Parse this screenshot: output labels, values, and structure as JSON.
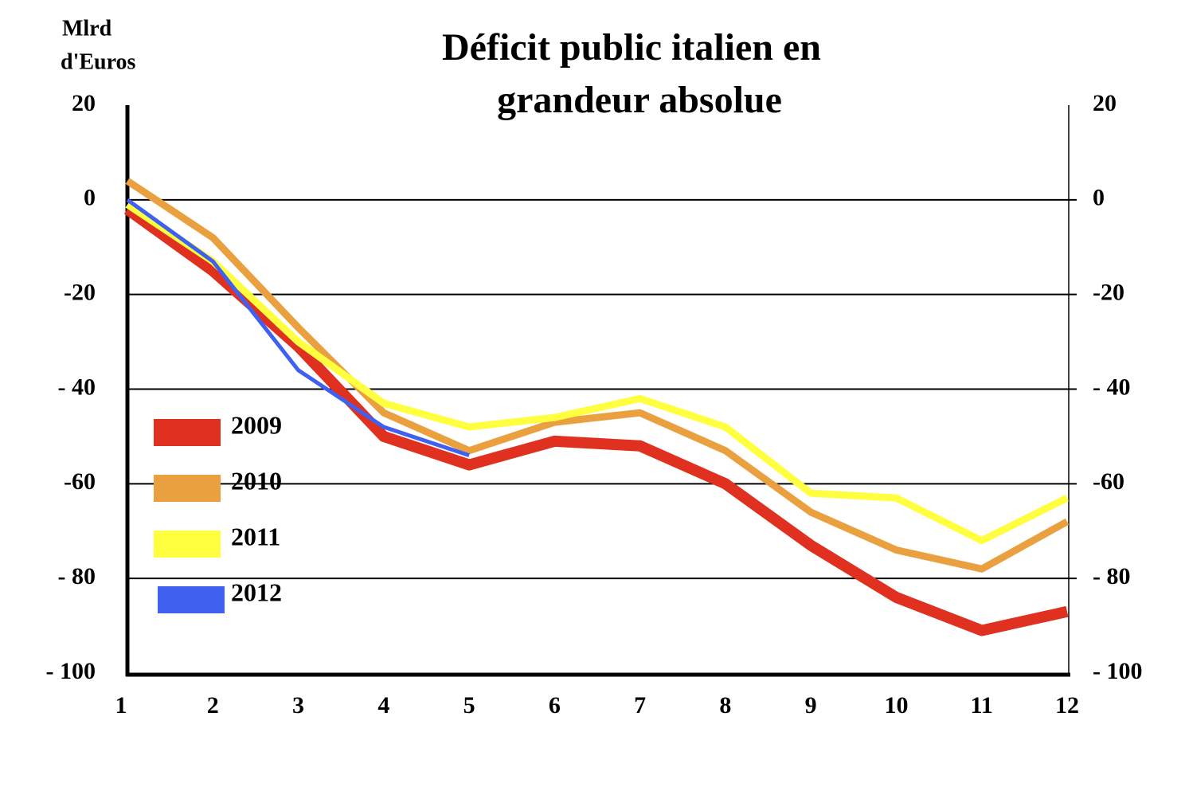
{
  "chart_data": {
    "type": "line",
    "title_lines": [
      "Déficit public italien en",
      "grandeur absolue"
    ],
    "y_label_lines": [
      "Mlrd",
      "d'Euros"
    ],
    "categories": [
      "1",
      "2",
      "3",
      "4",
      "5",
      "6",
      "7",
      "8",
      "9",
      "10",
      "11",
      "12"
    ],
    "series": [
      {
        "name": "2009",
        "color": "#e03020",
        "values": [
          -2,
          -15,
          -31,
          -50,
          -56,
          -51,
          -52,
          -60,
          -73,
          -84,
          -91,
          -87
        ]
      },
      {
        "name": "2010",
        "color": "#eba040",
        "values": [
          4,
          -8,
          -27,
          -45,
          -53,
          -47,
          -45,
          -53,
          -66,
          -74,
          -78,
          -68
        ]
      },
      {
        "name": "2011",
        "color": "#ffff40",
        "values": [
          -1,
          -13,
          -30,
          -43,
          -48,
          -46,
          -42,
          -48,
          -62,
          -63,
          -72,
          -63
        ]
      },
      {
        "name": "2012",
        "color": "#4060f0",
        "values": [
          0,
          -13,
          -36,
          -48,
          -54,
          null,
          null,
          null,
          null,
          null,
          null,
          null
        ]
      }
    ],
    "ylim": [
      -100,
      20
    ],
    "yticks": [
      20,
      0,
      -20,
      {
        "value": -40,
        "label": "- 40"
      },
      -60,
      {
        "value": -80,
        "label": "- 80"
      },
      {
        "value": -100,
        "label": "- 100"
      }
    ],
    "y2lim": [
      -100,
      20
    ],
    "y2ticks": [
      20,
      0,
      -20,
      {
        "value": -40,
        "label": "- 40"
      },
      -60,
      {
        "value": -80,
        "label": "- 80"
      },
      {
        "value": -100,
        "label": "- 100"
      }
    ],
    "grid": true,
    "legend": "left"
  }
}
